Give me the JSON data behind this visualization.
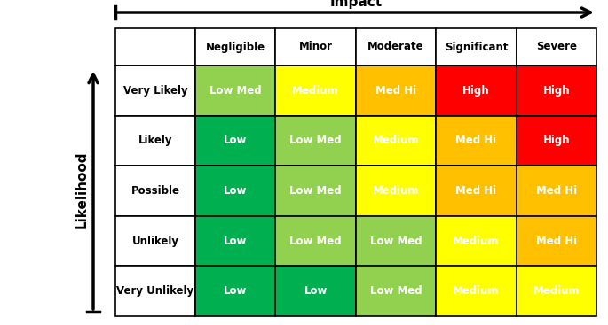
{
  "col_labels": [
    "Negligible",
    "Minor",
    "Moderate",
    "Significant",
    "Severe"
  ],
  "row_labels": [
    "Very Likely",
    "Likely",
    "Possible",
    "Unlikely",
    "Very Unlikely"
  ],
  "cell_texts": [
    [
      "Low Med",
      "Medium",
      "Med Hi",
      "High",
      "High"
    ],
    [
      "Low",
      "Low Med",
      "Medium",
      "Med Hi",
      "High"
    ],
    [
      "Low",
      "Low Med",
      "Medium",
      "Med Hi",
      "Med Hi"
    ],
    [
      "Low",
      "Low Med",
      "Low Med",
      "Medium",
      "Med Hi"
    ],
    [
      "Low",
      "Low",
      "Low Med",
      "Medium",
      "Medium"
    ]
  ],
  "cell_colors": [
    [
      "#92D050",
      "#FFFF00",
      "#FFC000",
      "#FF0000",
      "#FF0000"
    ],
    [
      "#00B050",
      "#92D050",
      "#FFFF00",
      "#FFC000",
      "#FF0000"
    ],
    [
      "#00B050",
      "#92D050",
      "#FFFF00",
      "#FFC000",
      "#FFC000"
    ],
    [
      "#00B050",
      "#92D050",
      "#92D050",
      "#FFFF00",
      "#FFC000"
    ],
    [
      "#00B050",
      "#00B050",
      "#92D050",
      "#FFFF00",
      "#FFFF00"
    ]
  ],
  "cell_text_colors": [
    [
      "white",
      "white",
      "white",
      "white",
      "white"
    ],
    [
      "white",
      "white",
      "white",
      "white",
      "white"
    ],
    [
      "white",
      "white",
      "white",
      "white",
      "white"
    ],
    [
      "white",
      "white",
      "white",
      "white",
      "white"
    ],
    [
      "white",
      "white",
      "white",
      "white",
      "white"
    ]
  ],
  "impact_label": "Impact",
  "likelihood_label": "Likelihood",
  "background_color": "#ffffff",
  "fig_width": 6.85,
  "fig_height": 3.67,
  "dpi": 100
}
